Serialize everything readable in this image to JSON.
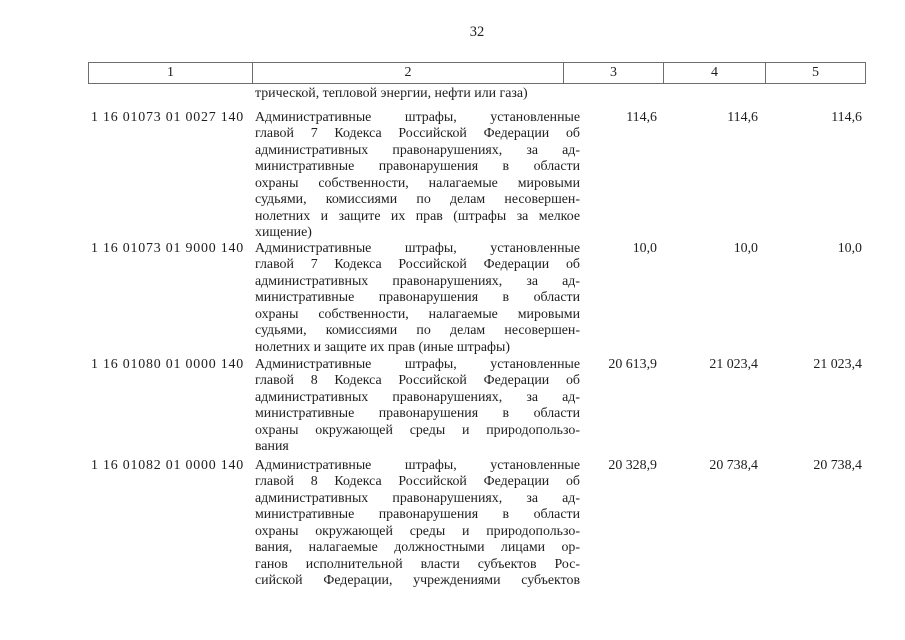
{
  "page": {
    "number": "32"
  },
  "table": {
    "header_columns": [
      "1",
      "2",
      "3",
      "4",
      "5"
    ],
    "continuation_line": "трической, тепловой энергии, нефти или газа)",
    "rows": [
      {
        "code": "1 16 01073 01 0027 140",
        "description_lines": [
          "Административные  штрафы,  установленные",
          "главой 7 Кодекса Российской Федерации об",
          "административных  правонарушениях,  за ад-",
          "министративные  правонарушения  в  области",
          "охраны собственности, налагаемые мировыми",
          "судьями,  комиссиями  по  делам  несовершен-",
          "нолетних и защите их прав (штрафы за мелкое",
          "хищение)"
        ],
        "continues_on_next_page": false,
        "values": [
          "114,6",
          "114,6",
          "114,6"
        ]
      },
      {
        "code": "1 16 01073 01 9000 140",
        "description_lines": [
          "Административные  штрафы,  установленные",
          "главой 7 Кодекса Российской Федерации об",
          "административных  правонарушениях,  за ад-",
          "министративные  правонарушения  в  области",
          "охраны собственности, налагаемые мировыми",
          "судьями,  комиссиями  по  делам  несовершен-",
          "нолетних и защите их прав (иные штрафы)"
        ],
        "continues_on_next_page": false,
        "values": [
          "10,0",
          "10,0",
          "10,0"
        ]
      },
      {
        "code": "1 16 01080 01 0000 140",
        "description_lines": [
          "Административные  штрафы,  установленные",
          "главой 8 Кодекса Российской Федерации об",
          "административных  правонарушениях,  за ад-",
          "министративные  правонарушения  в  области",
          "охраны окружающей среды и природопользо-",
          "вания"
        ],
        "continues_on_next_page": false,
        "values": [
          "20 613,9",
          "21 023,4",
          "21 023,4"
        ]
      },
      {
        "code": "1 16 01082 01 0000 140",
        "description_lines": [
          "Административные  штрафы,  установленные",
          "главой 8 Кодекса Российской Федерации об",
          "административных  правонарушениях,  за ад-",
          "министративные  правонарушения  в  области",
          "охраны окружающей среды и природопользо-",
          "вания, налагаемые должностными лицами ор-",
          "ганов исполнительной власти субъектов Рос-",
          "сийской Федерации, учреждениями субъектов"
        ],
        "continues_on_next_page": true,
        "values": [
          "20 328,9",
          "20 738,4",
          "20 738,4"
        ]
      }
    ]
  },
  "colors": {
    "background": "#ffffff",
    "text": "#1e1e1e",
    "table_border": "#6e6e6e"
  }
}
